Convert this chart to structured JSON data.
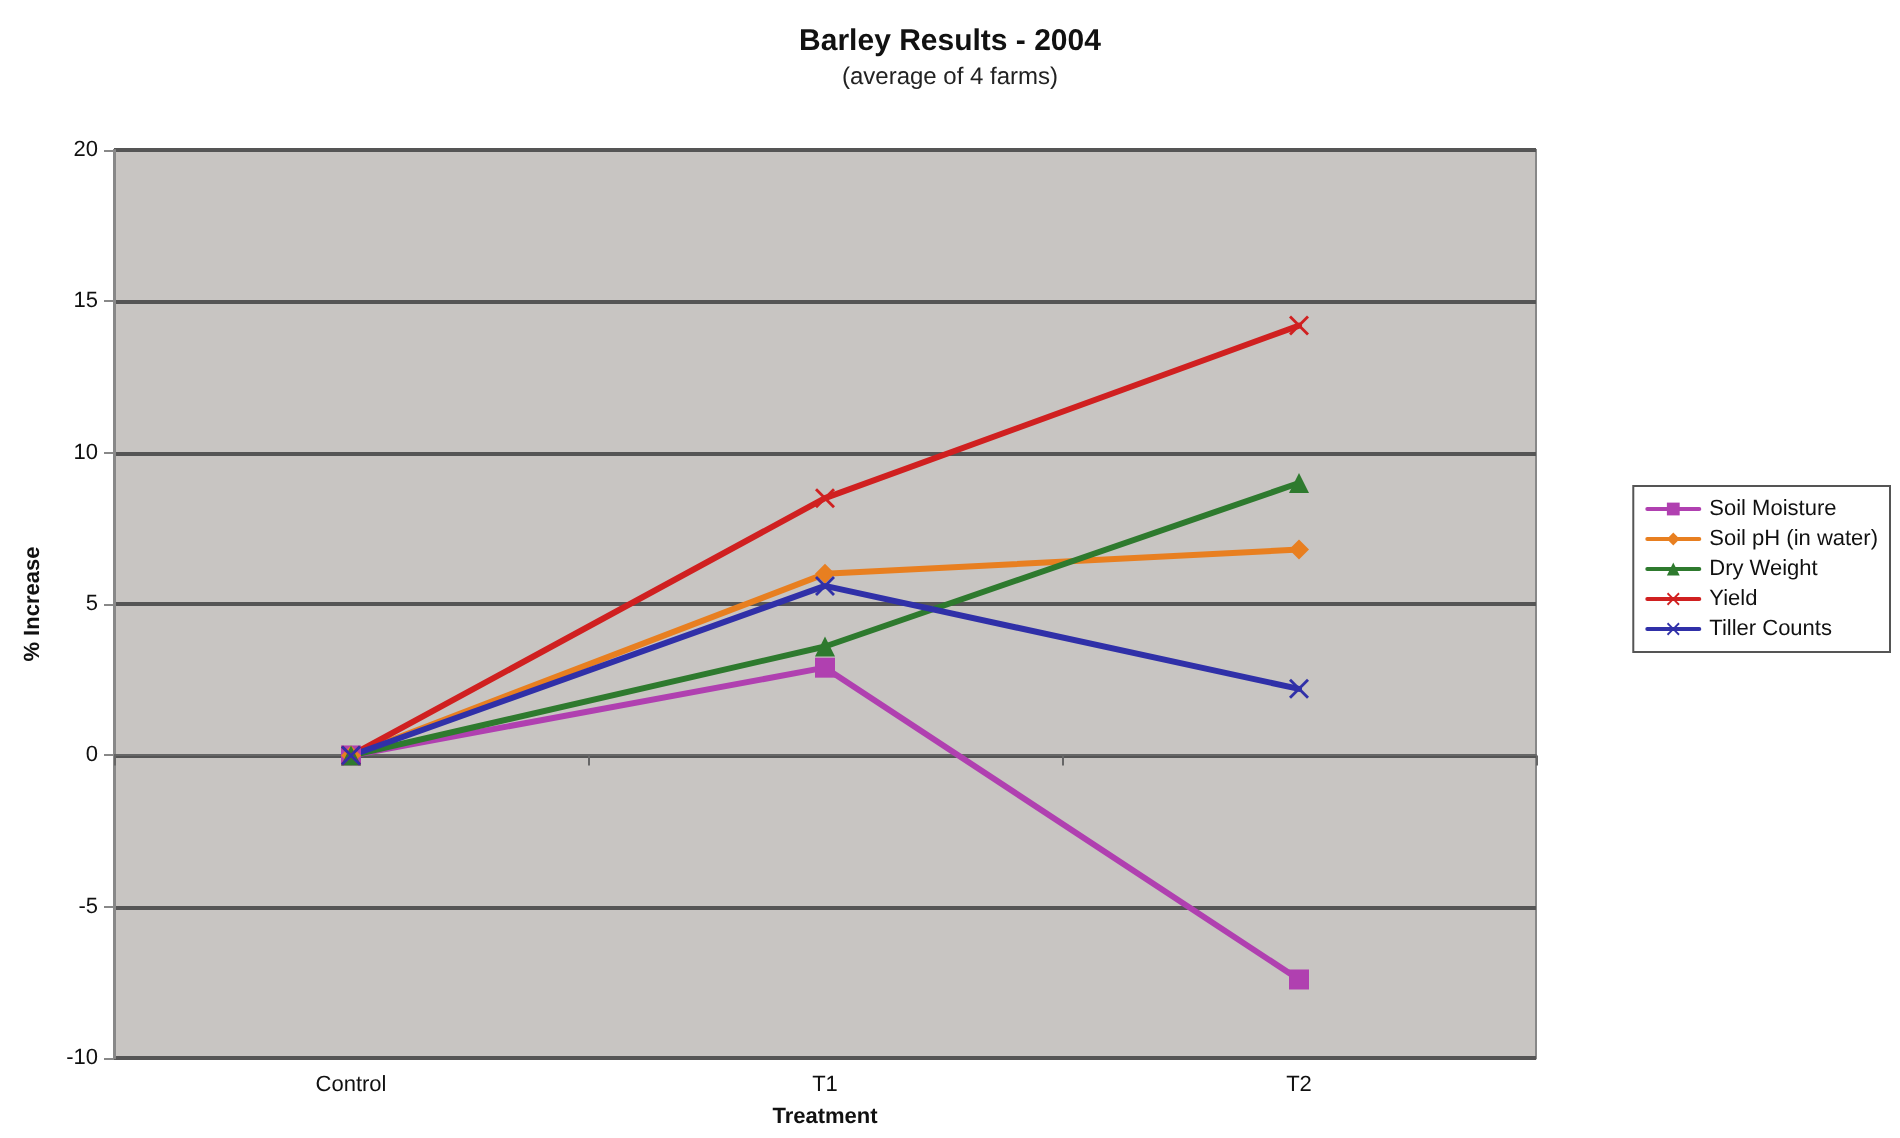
{
  "chart_data": {
    "type": "line",
    "title": "Barley Results - 2004",
    "subtitle": "(average of 4 farms)",
    "xlabel": "Treatment",
    "ylabel": "% Increase",
    "categories": [
      "Control",
      "T1",
      "T2"
    ],
    "series": [
      {
        "name": "Soil Moisture",
        "color": "#b040b0",
        "marker": "square",
        "values": [
          0,
          2.9,
          -7.4
        ]
      },
      {
        "name": "Soil pH (in water)",
        "color": "#e87f20",
        "marker": "diamond",
        "values": [
          0,
          6.0,
          6.8
        ]
      },
      {
        "name": "Dry Weight",
        "color": "#2e7a2e",
        "marker": "triangle",
        "values": [
          0,
          3.6,
          9.0
        ]
      },
      {
        "name": "Yield",
        "color": "#d02020",
        "marker": "cross",
        "values": [
          0,
          8.5,
          14.2
        ]
      },
      {
        "name": "Tiller Counts",
        "color": "#3030a8",
        "marker": "cross",
        "values": [
          0,
          5.6,
          2.2
        ]
      }
    ],
    "ylim": [
      -10,
      20
    ],
    "yticks": [
      -10,
      -5,
      0,
      5,
      10,
      15,
      20
    ],
    "grid": "y",
    "legend": "right",
    "line_style": "solid"
  }
}
